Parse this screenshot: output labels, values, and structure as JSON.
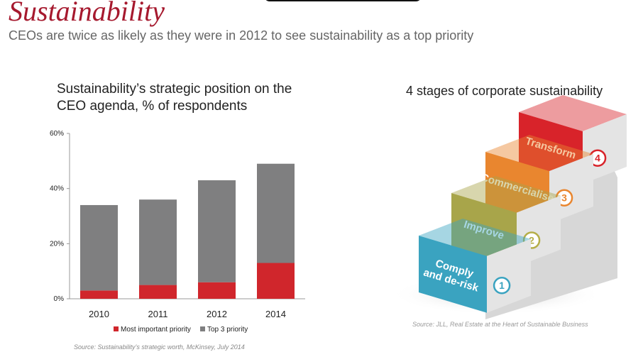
{
  "header": {
    "title": "Sustainability",
    "subtitle": "CEOs are twice as likely as they were in 2012 to see sustainability as a top priority"
  },
  "chart_data": {
    "type": "bar",
    "stacked": true,
    "title": "Sustainability’s strategic position on the CEO agenda, % of respondents",
    "categories": [
      "2010",
      "2011",
      "2012",
      "2014"
    ],
    "series": [
      {
        "name": "Most important priority",
        "values": [
          3,
          5,
          6,
          13
        ],
        "color": "#d0262c"
      },
      {
        "name": "Top 3 priority",
        "values": [
          31,
          31,
          37,
          36
        ],
        "color": "#7f7f80"
      }
    ],
    "yticks": [
      "0%",
      "20%",
      "40%",
      "60%"
    ],
    "ylim": [
      0,
      60
    ],
    "legend_position": "bottom",
    "source": "Source: Sustainability’s strategic worth, McKinsey, July 2014"
  },
  "stairs": {
    "title": "4 stages of corporate sustainability",
    "steps": [
      {
        "label_lines": [
          "Comply",
          "and de-risk"
        ],
        "number": "1",
        "color": "#3aa3c0",
        "badge_color": "#3aa3c0"
      },
      {
        "label_lines": [
          "Improve"
        ],
        "number": "2",
        "color": "#a8a54a",
        "badge_color": "#b5ae48"
      },
      {
        "label_lines": [
          "Commercialise"
        ],
        "number": "3",
        "color": "#e9862f",
        "badge_color": "#e9862f"
      },
      {
        "label_lines": [
          "Transform"
        ],
        "number": "4",
        "color": "#d8232a",
        "badge_color": "#d8232a"
      }
    ],
    "source": "Source: JLL, Real Estate at the Heart of Sustainable Business"
  }
}
